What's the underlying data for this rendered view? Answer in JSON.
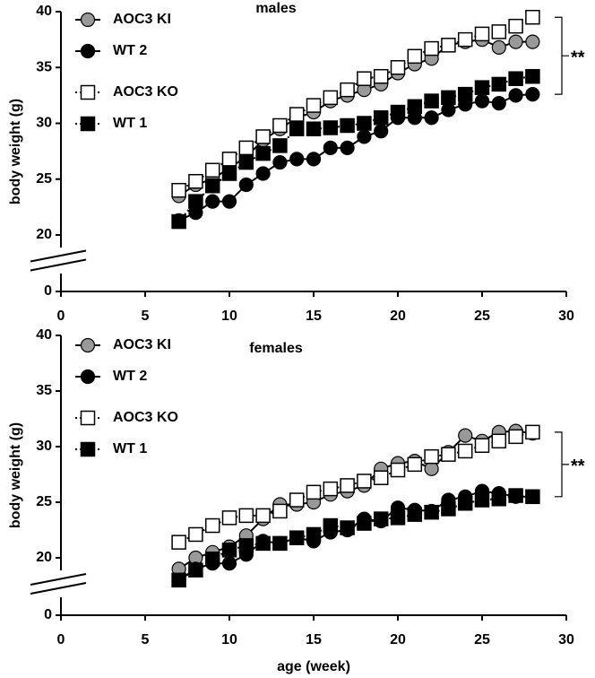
{
  "chart_data": [
    {
      "type": "line",
      "title": "males",
      "ylabel": "body weight (g)",
      "xlim": [
        0,
        30
      ],
      "xticks": [
        0,
        5,
        10,
        15,
        20,
        25,
        30
      ],
      "ylim": [
        0,
        40
      ],
      "yticks": [
        0,
        20,
        25,
        30,
        35,
        40
      ],
      "y_break": [
        0,
        20
      ],
      "annotation": "**",
      "x": [
        7,
        8,
        9,
        10,
        11,
        12,
        13,
        14,
        15,
        16,
        17,
        18,
        19,
        20,
        21,
        22,
        23,
        24,
        25,
        26,
        27,
        28
      ],
      "series": [
        {
          "name": "AOC3 KI",
          "color": "#999999",
          "marker": "circle",
          "line_style": "solid",
          "values": [
            23.5,
            24.5,
            25,
            26,
            27,
            28.5,
            29.5,
            30.5,
            31,
            32,
            32.5,
            33,
            33.5,
            34.5,
            35.3,
            35.8,
            37,
            37.3,
            37.5,
            36.8,
            37.3,
            37.3
          ]
        },
        {
          "name": "WT 2",
          "color": "#000000",
          "marker": "circle",
          "line_style": "solid",
          "values": [
            21.3,
            22,
            23,
            23,
            24.5,
            25.5,
            26.5,
            26.8,
            26.8,
            27.8,
            27.8,
            28.8,
            29.3,
            30.5,
            30.5,
            30.5,
            31.2,
            31.7,
            32,
            31.8,
            32.5,
            32.6
          ]
        },
        {
          "name": "AOC3 KO",
          "color": "#ffffff",
          "marker": "square",
          "line_style": "dotted",
          "values": [
            24,
            24.8,
            25.8,
            26.8,
            27.8,
            28.8,
            29.8,
            30.8,
            31.6,
            32.3,
            33,
            34,
            34.2,
            35,
            36,
            36.7,
            37,
            37.5,
            38,
            38.2,
            38.7,
            39.5
          ]
        },
        {
          "name": "WT 1",
          "color": "#000000",
          "marker": "square",
          "line_style": "dotted",
          "values": [
            21.2,
            23,
            24.4,
            25.5,
            26.5,
            27.3,
            28,
            29.5,
            29.5,
            29.6,
            29.8,
            30,
            30.5,
            31,
            31.5,
            32,
            32.3,
            32.6,
            33.2,
            33.5,
            34,
            34.2
          ]
        }
      ]
    },
    {
      "type": "line",
      "title": "females",
      "ylabel": "body weight (g)",
      "xlabel": "age (week)",
      "xlim": [
        0,
        30
      ],
      "xticks": [
        0,
        5,
        10,
        15,
        20,
        25,
        30
      ],
      "ylim": [
        0,
        40
      ],
      "yticks": [
        0,
        20,
        25,
        30,
        35,
        40
      ],
      "y_break": [
        0,
        20
      ],
      "annotation": "**",
      "x": [
        7,
        8,
        9,
        10,
        11,
        12,
        13,
        14,
        15,
        16,
        17,
        18,
        19,
        20,
        21,
        22,
        23,
        24,
        25,
        26,
        27,
        28
      ],
      "series": [
        {
          "name": "AOC3 KI",
          "color": "#999999",
          "marker": "circle",
          "line_style": "solid",
          "values": [
            19,
            20,
            20.5,
            21,
            22,
            23.5,
            24.8,
            24.8,
            25,
            25.7,
            26,
            26.5,
            28,
            28.5,
            28.7,
            28,
            29.5,
            31,
            30.5,
            31.3,
            31.4,
            31.2
          ]
        },
        {
          "name": "WT 2",
          "color": "#000000",
          "marker": "circle",
          "line_style": "solid",
          "values": [
            18,
            19,
            19.5,
            19.5,
            20.3,
            21.5,
            21.3,
            21.8,
            21.5,
            22.3,
            22.5,
            23.5,
            23.3,
            24.5,
            24.3,
            24.2,
            25.2,
            25.5,
            26,
            25.8,
            25.5,
            25.5
          ]
        },
        {
          "name": "AOC3 KO",
          "color": "#ffffff",
          "marker": "square",
          "line_style": "dotted",
          "values": [
            21.4,
            22.1,
            22.9,
            23.6,
            23.8,
            23.8,
            24.2,
            25.2,
            25.9,
            26.2,
            26.5,
            26.9,
            27.2,
            27.9,
            28.4,
            29.1,
            29.3,
            29.6,
            30.1,
            30.5,
            30.9,
            31.3
          ]
        },
        {
          "name": "WT 1",
          "color": "#000000",
          "marker": "square",
          "line_style": "dotted",
          "values": [
            18,
            18.9,
            19.9,
            20.7,
            21.1,
            21.3,
            21.3,
            21.8,
            22.1,
            22.9,
            22.7,
            23.1,
            23.5,
            23.6,
            23.9,
            24.1,
            24.4,
            24.9,
            25.2,
            25.3,
            25.6,
            25.5
          ]
        }
      ]
    }
  ]
}
